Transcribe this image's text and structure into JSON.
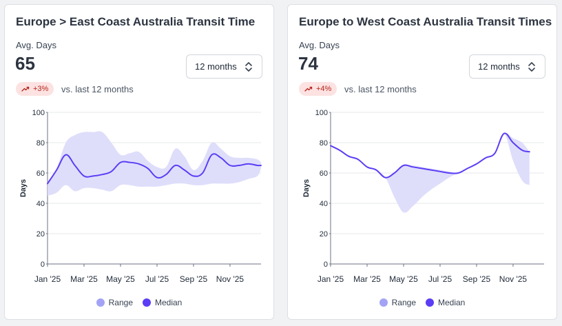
{
  "cards": [
    {
      "title": "Europe > East Coast Australia Transit Time",
      "metric_label": "Avg. Days",
      "metric_value": "65",
      "period_select": "12 months",
      "change_badge": "+3%",
      "comparison_text": "vs. last 12 months"
    },
    {
      "title": "Europe to West Coast Australia Transit Times",
      "metric_label": "Avg. Days",
      "metric_value": "74",
      "period_select": "12 months",
      "change_badge": "+4%",
      "comparison_text": "vs. last 12 months"
    }
  ],
  "legend": {
    "range_label": "Range",
    "median_label": "Median"
  },
  "colors": {
    "median": "#5b3df5",
    "range": "#dcdcfb",
    "range_legend": "#a3a3f5",
    "badge_bg": "#fde2e2",
    "badge_text": "#b42318"
  },
  "chart_data": [
    {
      "type": "area",
      "ylabel": "Days",
      "ylim": [
        0,
        100
      ],
      "yticks": [
        0,
        20,
        40,
        60,
        80,
        100
      ],
      "xlim": [
        0,
        11.7
      ],
      "xticks": [
        0,
        2,
        4,
        6,
        8,
        10
      ],
      "xtick_labels": [
        "Jan '25",
        "Mar '25",
        "May '25",
        "Jul '25",
        "Sep '25",
        "Nov '25"
      ],
      "grid": true,
      "legend_position": "bottom-center",
      "series": [
        {
          "name": "Median",
          "x": [
            0,
            0.5,
            1,
            1.5,
            2,
            2.5,
            3,
            3.5,
            4,
            4.5,
            5,
            5.5,
            6,
            6.5,
            7,
            7.5,
            8,
            8.5,
            9,
            9.5,
            10,
            10.5,
            11,
            11.5,
            11.7
          ],
          "values": [
            53,
            62,
            72,
            65,
            58,
            58,
            59,
            61,
            67,
            67,
            66,
            63,
            57,
            59,
            65,
            62,
            58,
            60,
            72,
            70,
            65,
            65,
            66,
            65,
            65
          ]
        },
        {
          "name": "Range",
          "x": [
            0,
            0.5,
            1,
            1.5,
            2,
            2.5,
            3,
            3.5,
            4,
            4.5,
            5,
            5.5,
            6,
            6.5,
            7,
            7.5,
            8,
            8.5,
            9,
            9.5,
            10,
            10.5,
            11,
            11.5,
            11.7
          ],
          "upper": [
            54,
            63,
            80,
            85,
            87,
            87,
            87,
            80,
            72,
            73,
            74,
            68,
            64,
            64,
            76,
            71,
            62,
            68,
            80,
            76,
            71,
            70,
            70,
            69,
            67
          ],
          "lower": [
            45,
            47,
            52,
            48,
            50,
            50,
            49,
            48,
            52,
            52,
            51,
            51,
            51,
            52,
            53,
            53,
            52,
            52,
            53,
            53,
            53,
            54,
            56,
            58,
            63
          ]
        }
      ]
    },
    {
      "type": "area",
      "ylabel": "Days",
      "ylim": [
        0,
        100
      ],
      "yticks": [
        0,
        20,
        40,
        60,
        80,
        100
      ],
      "xlim": [
        0,
        11.7
      ],
      "xticks": [
        0,
        2,
        4,
        6,
        8,
        10
      ],
      "xtick_labels": [
        "Jan '25",
        "Mar '25",
        "May '25",
        "Jul '25",
        "Sep '25",
        "Nov '25"
      ],
      "grid": true,
      "legend_position": "bottom-center",
      "series": [
        {
          "name": "Median",
          "x": [
            0,
            0.5,
            1,
            1.5,
            2,
            2.5,
            3,
            3.5,
            4,
            4.5,
            5,
            5.5,
            6,
            6.5,
            7,
            7.5,
            8,
            8.5,
            9,
            9.5,
            10,
            10.5,
            10.9
          ],
          "values": [
            78,
            75,
            71,
            69,
            64,
            62,
            57,
            60,
            65,
            64,
            63,
            62,
            61,
            60,
            60,
            63,
            66,
            70,
            73,
            86,
            80,
            75,
            74
          ]
        },
        {
          "name": "Range",
          "x": [
            0,
            0.5,
            1,
            1.5,
            2,
            2.5,
            3,
            3.5,
            4,
            4.5,
            5,
            5.5,
            6,
            6.5,
            7,
            7.5,
            8,
            8.5,
            9,
            9.5,
            10,
            10.5,
            10.9
          ],
          "upper": [
            78,
            75,
            71,
            69,
            64,
            62,
            57,
            60,
            65,
            65,
            64,
            63,
            62,
            61,
            60,
            63,
            66,
            70,
            73,
            86,
            83,
            80,
            74
          ],
          "lower": [
            78,
            75,
            71,
            69,
            64,
            62,
            57,
            44,
            34,
            38,
            44,
            49,
            53,
            57,
            60,
            63,
            66,
            70,
            73,
            86,
            68,
            55,
            52
          ]
        }
      ]
    }
  ]
}
